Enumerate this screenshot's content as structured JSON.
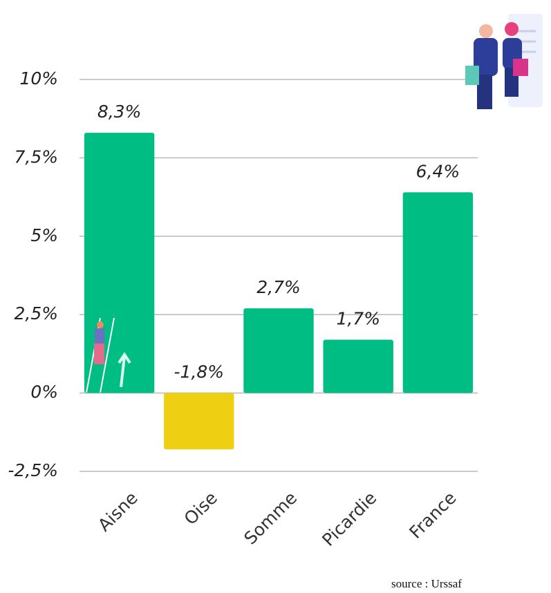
{
  "chart_data": {
    "type": "bar",
    "categories": [
      "Aisne",
      "Oise",
      "Somme",
      "Picardie",
      "France"
    ],
    "values": [
      8.3,
      -1.8,
      2.7,
      1.7,
      6.4
    ],
    "value_labels": [
      "8,3%",
      "-1,8%",
      "2,7%",
      "1,7%",
      "6,4%"
    ],
    "colors": [
      "#00bd84",
      "#efcf12",
      "#00bd84",
      "#00bd84",
      "#00bd84"
    ],
    "ylim": [
      -2.5,
      10
    ],
    "yticks": [
      {
        "value": -2.5,
        "label": "-2,5%"
      },
      {
        "value": 0,
        "label": "0%"
      },
      {
        "value": 2.5,
        "label": "2,5%"
      },
      {
        "value": 5,
        "label": "5%"
      },
      {
        "value": 7.5,
        "label": "7,5%"
      },
      {
        "value": 10,
        "label": "10%"
      }
    ],
    "grid": true,
    "source": "source : Urssaf"
  }
}
